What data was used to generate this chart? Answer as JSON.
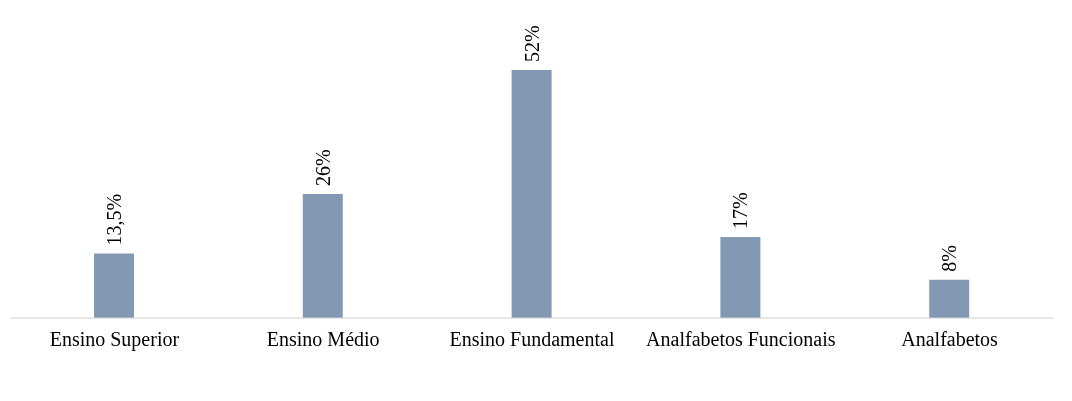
{
  "chart_data": {
    "type": "bar",
    "categories": [
      "Ensino Superior",
      "Ensino Médio",
      "Ensino Fundamental",
      "Analfabetos Funcionais",
      "Analfabetos"
    ],
    "values": [
      13.5,
      26,
      52,
      17,
      8
    ],
    "value_labels": [
      "13,5%",
      "26%",
      "52%",
      "17%",
      "8%"
    ],
    "color": "#8399b3",
    "grid": false,
    "legend": false
  }
}
